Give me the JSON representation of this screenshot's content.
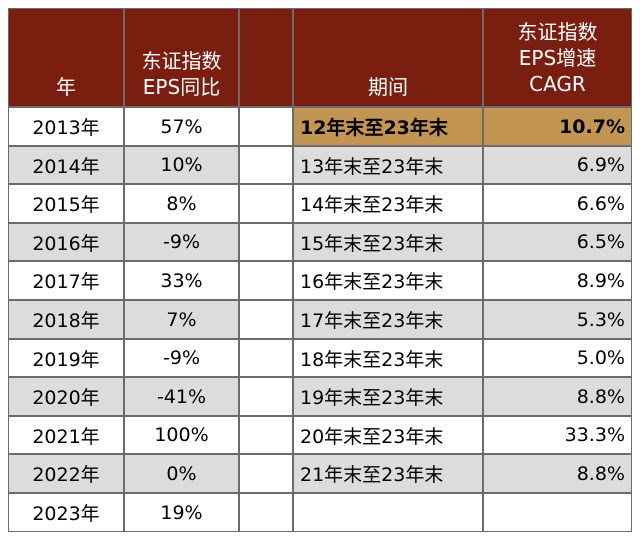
{
  "headers": {
    "year": "年",
    "yoy_line1": "东证指数",
    "yoy_line2": "EPS同比",
    "period": "期间",
    "cagr_line1": "东证指数",
    "cagr_line2": "EPS增速",
    "cagr_line3": "CAGR"
  },
  "yoy_rows": [
    {
      "year": "2013年",
      "value": "57%"
    },
    {
      "year": "2014年",
      "value": "10%"
    },
    {
      "year": "2015年",
      "value": "8%"
    },
    {
      "year": "2016年",
      "value": "-9%"
    },
    {
      "year": "2017年",
      "value": "33%"
    },
    {
      "year": "2018年",
      "value": "7%"
    },
    {
      "year": "2019年",
      "value": "-9%"
    },
    {
      "year": "2020年",
      "value": "-41%"
    },
    {
      "year": "2021年",
      "value": "100%"
    },
    {
      "year": "2022年",
      "value": "0%"
    },
    {
      "year": "2023年",
      "value": "19%"
    }
  ],
  "cagr_rows": [
    {
      "period": "12年末至23年末",
      "value": "10.7%",
      "highlight": true
    },
    {
      "period": "13年末至23年末",
      "value": "6.9%"
    },
    {
      "period": "14年末至23年末",
      "value": "6.6%"
    },
    {
      "period": "15年末至23年末",
      "value": "6.5%"
    },
    {
      "period": "16年末至23年末",
      "value": "8.9%"
    },
    {
      "period": "17年末至23年末",
      "value": "5.3%"
    },
    {
      "period": "18年末至23年末",
      "value": "5.0%"
    },
    {
      "period": "19年末至23年末",
      "value": "8.8%"
    },
    {
      "period": "20年末至23年末",
      "value": "33.3%"
    },
    {
      "period": "21年末至23年末",
      "value": "8.8%"
    }
  ],
  "colors": {
    "header_bg": "#7a1e10",
    "highlight_bg": "#c39552",
    "stripe_bg": "#dcdcdc"
  }
}
